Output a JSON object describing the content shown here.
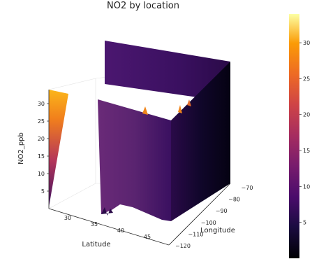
{
  "chart_data": {
    "type": "surface3d",
    "title": "NO2 by location",
    "xlabel": "Latitude",
    "ylabel": "Longitude",
    "zlabel": "NO2_ppb",
    "xticks": [
      30,
      35,
      40,
      45
    ],
    "yticks": [
      -120,
      -110,
      -100,
      -90,
      -80,
      -70
    ],
    "zticks": [
      5,
      10,
      15,
      20,
      25,
      30
    ],
    "zlim": [
      0,
      34
    ],
    "colorbar": {
      "colormap": "inferno",
      "range": [
        0,
        34
      ],
      "ticks": [
        5,
        10,
        15,
        20,
        25,
        30
      ]
    },
    "grid": true,
    "legend": "none"
  }
}
